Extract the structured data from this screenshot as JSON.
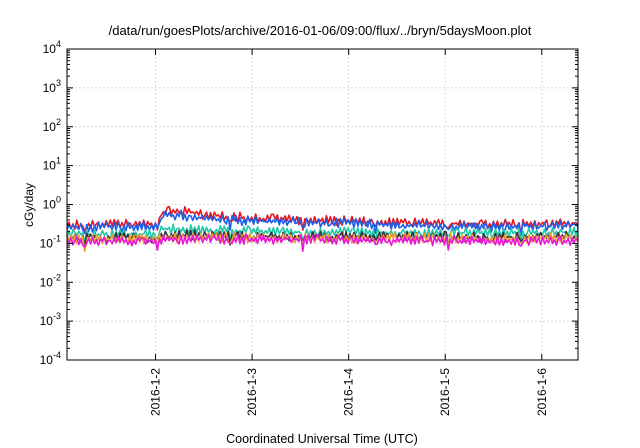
{
  "chart_data": {
    "type": "line",
    "title": "/data/run/goesPlots/archive/2016-01-06/09:00/flux/../bryn/5daysMoon.plot",
    "xlabel": "Coordinated Universal Time (UTC)",
    "ylabel": "cGy/day",
    "y_scale": "log",
    "ylim": [
      0.0001,
      10000
    ],
    "y_ticks": [
      {
        "value": 0.0001,
        "base": "10",
        "exp": "-4"
      },
      {
        "value": 0.001,
        "base": "10",
        "exp": "-3"
      },
      {
        "value": 0.01,
        "base": "10",
        "exp": "-2"
      },
      {
        "value": 0.1,
        "base": "10",
        "exp": "-1"
      },
      {
        "value": 1,
        "base": "10",
        "exp": "0"
      },
      {
        "value": 10,
        "base": "10",
        "exp": "1"
      },
      {
        "value": 100,
        "base": "10",
        "exp": "2"
      },
      {
        "value": 1000,
        "base": "10",
        "exp": "3"
      },
      {
        "value": 10000,
        "base": "10",
        "exp": "4"
      }
    ],
    "xlim": [
      "2016-01-01 02:00",
      "2016-01-06 09:00"
    ],
    "x_ticks": [
      "2016-1-2",
      "2016-1-3",
      "2016-1-4",
      "2016-1-5",
      "2016-1-6"
    ],
    "grid": true,
    "legend": "none",
    "x": [
      "2016-01-01 02:00",
      "2016-01-01 12:00",
      "2016-01-02 00:00",
      "2016-01-02 02:00",
      "2016-01-02 06:00",
      "2016-01-02 12:00",
      "2016-01-03 00:00",
      "2016-01-03 12:00",
      "2016-01-04 00:00",
      "2016-01-04 12:00",
      "2016-01-05 00:00",
      "2016-01-05 12:00",
      "2016-01-06 00:00",
      "2016-01-06 09:00"
    ],
    "series": [
      {
        "color": "#e8141e",
        "values": [
          0.26,
          0.27,
          0.28,
          0.56,
          0.6,
          0.48,
          0.38,
          0.35,
          0.32,
          0.3,
          0.28,
          0.27,
          0.28,
          0.29
        ]
      },
      {
        "color": "#1f5fe8",
        "values": [
          0.22,
          0.23,
          0.24,
          0.44,
          0.46,
          0.38,
          0.32,
          0.3,
          0.28,
          0.26,
          0.24,
          0.23,
          0.24,
          0.25
        ]
      },
      {
        "color": "#1fc8a8",
        "values": [
          0.15,
          0.15,
          0.15,
          0.2,
          0.2,
          0.19,
          0.18,
          0.17,
          0.17,
          0.16,
          0.16,
          0.16,
          0.16,
          0.17
        ]
      },
      {
        "color": "#3a2e3a",
        "values": [
          0.12,
          0.12,
          0.12,
          0.14,
          0.14,
          0.14,
          0.13,
          0.13,
          0.13,
          0.13,
          0.13,
          0.12,
          0.13,
          0.13
        ]
      },
      {
        "color": "#f0a030",
        "values": [
          0.11,
          0.11,
          0.11,
          0.12,
          0.12,
          0.12,
          0.12,
          0.12,
          0.12,
          0.12,
          0.12,
          0.11,
          0.12,
          0.12
        ]
      },
      {
        "color": "#e818d8",
        "values": [
          0.1,
          0.1,
          0.1,
          0.11,
          0.11,
          0.11,
          0.11,
          0.11,
          0.11,
          0.1,
          0.1,
          0.1,
          0.1,
          0.1
        ]
      }
    ]
  }
}
